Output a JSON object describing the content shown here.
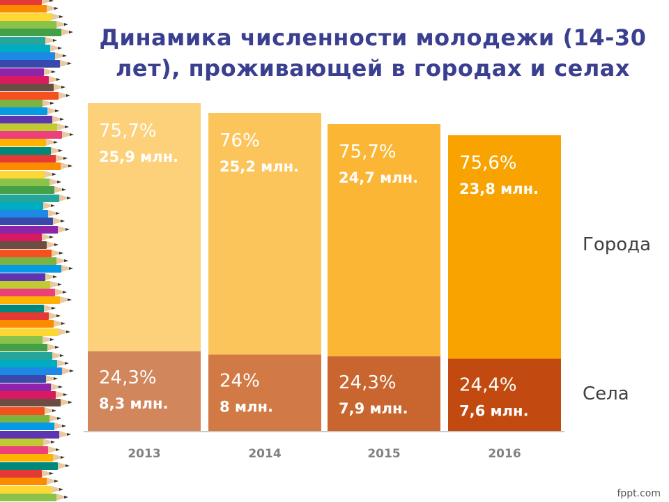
{
  "slide": {
    "title": "Динамика численности молодежи (14-30 лет), проживающей в городах и селах",
    "footer": "fppt.com"
  },
  "chart_data": {
    "type": "bar",
    "stacked": true,
    "percent_stacked": true,
    "categories": [
      "2013",
      "2014",
      "2015",
      "2016"
    ],
    "series": [
      {
        "name": "Села",
        "values": [
          8.3,
          8,
          7.9,
          7.6
        ],
        "percent": [
          24.3,
          24,
          24.3,
          24.4
        ],
        "percent_labels": [
          "24,3%",
          "24%",
          "24,3%",
          "24,4%"
        ],
        "value_labels": [
          "8,3 млн.",
          "8 млн.",
          "7,9 млн.",
          "7,6 млн."
        ],
        "colors": [
          "#d1865c",
          "#d17a45",
          "#c9662f",
          "#c24a10"
        ]
      },
      {
        "name": "Города",
        "values": [
          25.9,
          25.2,
          24.7,
          23.8
        ],
        "percent": [
          75.7,
          76,
          75.7,
          75.6
        ],
        "percent_labels": [
          "75,7%",
          "76%",
          "75,7%",
          "75,6%"
        ],
        "value_labels": [
          "25,9 млн.",
          "25,2 млн.",
          "24,7 млн.",
          "23,8 млн."
        ],
        "colors": [
          "#fdd07a",
          "#fcc55c",
          "#fbb635",
          "#f9a300"
        ]
      }
    ],
    "unit": "млн.",
    "legend_position": "right",
    "grid": false
  },
  "colors": {
    "title": "#3b3f8f",
    "axis_line": "#c8c8c8",
    "tick_label": "#808080",
    "legend_text": "#404040"
  },
  "pencil_colors": [
    "#e53935",
    "#fb8c00",
    "#fdd835",
    "#8bc34a",
    "#43a047",
    "#26a69a",
    "#00acc1",
    "#1e88e5",
    "#3949ab",
    "#8e24aa",
    "#d81b60",
    "#6d4c41",
    "#f4511e",
    "#7cb342",
    "#039be5",
    "#5e35b1",
    "#c0ca33",
    "#ec407a",
    "#ffb300",
    "#00897b"
  ]
}
